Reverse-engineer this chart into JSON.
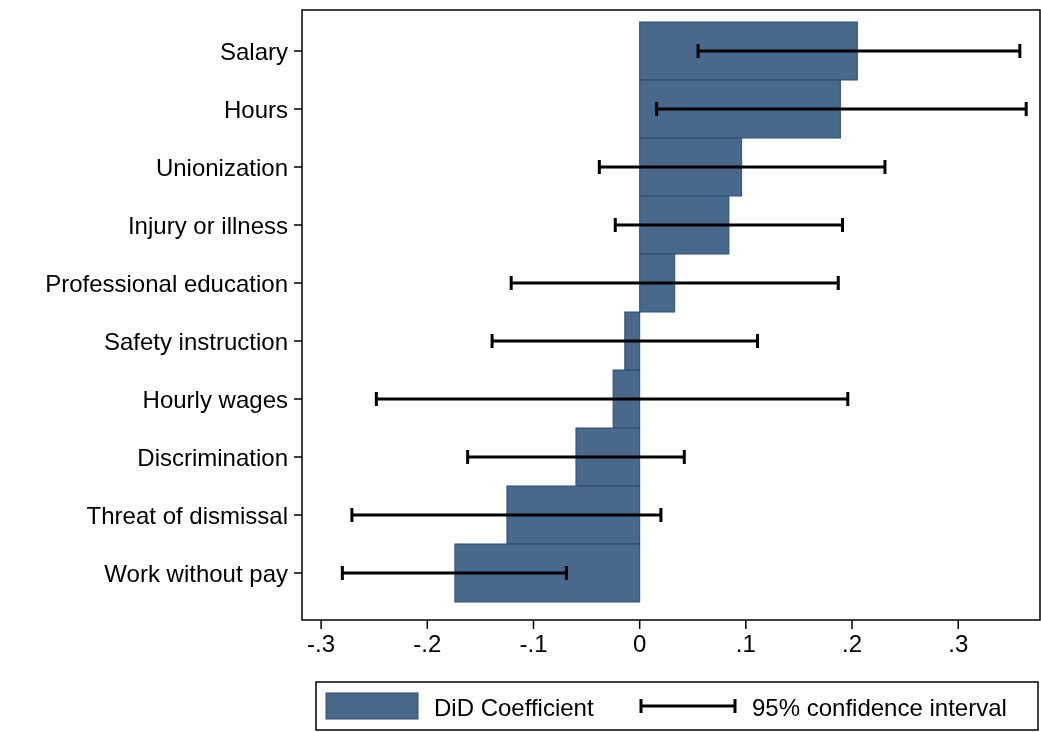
{
  "chart_data": {
    "type": "bar",
    "orientation": "horizontal",
    "categories": [
      "Salary",
      "Hours",
      "Unionization",
      "Injury or illness",
      "Professional education",
      "Safety instruction",
      "Hourly wages",
      "Discrimination",
      "Threat of dismissal",
      "Work without pay"
    ],
    "series": [
      {
        "name": "DiD Coefficient",
        "color": "#48698b",
        "values": [
          0.205,
          0.189,
          0.096,
          0.084,
          0.033,
          -0.014,
          -0.025,
          -0.06,
          -0.125,
          -0.174
        ],
        "errors": [
          [
            0.055,
            0.358
          ],
          [
            0.016,
            0.364
          ],
          [
            -0.038,
            0.231
          ],
          [
            -0.023,
            0.191
          ],
          [
            -0.121,
            0.187
          ],
          [
            -0.139,
            0.111
          ],
          [
            -0.248,
            0.196
          ],
          [
            -0.162,
            0.042
          ],
          [
            -0.271,
            0.02
          ],
          [
            -0.28,
            -0.069
          ]
        ]
      }
    ],
    "xlim": [
      -0.318,
      0.377
    ],
    "xticks": [
      {
        "value": -0.3,
        "label": "-.3"
      },
      {
        "value": -0.2,
        "label": "-.2"
      },
      {
        "value": -0.1,
        "label": "-.1"
      },
      0,
      {
        "value": 0.1,
        "label": ".1"
      },
      {
        "value": 0.2,
        "label": ".2"
      },
      {
        "value": 0.3,
        "label": ".3"
      }
    ],
    "annotations": [
      "95% confidence interval"
    ],
    "grid": false,
    "legend": "bottom"
  }
}
